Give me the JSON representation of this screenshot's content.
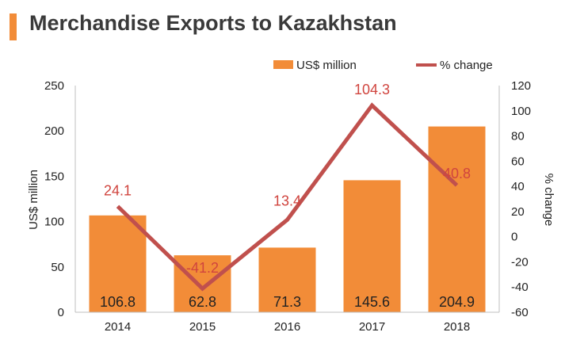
{
  "header": {
    "title": "Merchandise Exports to Kazakhstan"
  },
  "colors": {
    "accent": "#f28c38",
    "bar": "#f28c38",
    "line": "#c0504d",
    "line_label": "#d0443e",
    "text": "#222222",
    "axis": "#bfbfbf"
  },
  "chart_data": {
    "type": "bar",
    "categories": [
      "2014",
      "2015",
      "2016",
      "2017",
      "2018"
    ],
    "series": [
      {
        "name": "US$ million",
        "type": "bar",
        "axis": "left",
        "values": [
          106.8,
          62.8,
          71.3,
          145.6,
          204.9
        ],
        "labels": [
          "106.8",
          "62.8",
          "71.3",
          "145.6",
          "204.9"
        ]
      },
      {
        "name": "% change",
        "type": "line",
        "axis": "right",
        "values": [
          24.1,
          -41.2,
          13.4,
          104.3,
          40.8
        ],
        "labels": [
          "24.1",
          "-41.2",
          "13.4",
          "104.3",
          "40.8"
        ]
      }
    ],
    "ylabel": "US$ million",
    "ylabel_right": "% change",
    "ylim": [
      0,
      250
    ],
    "ylim_right": [
      -60,
      120
    ],
    "yticks": [
      "0",
      "50",
      "100",
      "150",
      "200",
      "250"
    ],
    "yticks_right": [
      "-60",
      "-40",
      "-20",
      "0",
      "20",
      "40",
      "60",
      "80",
      "100",
      "120"
    ],
    "legend_position": "top-right",
    "grid": false
  }
}
